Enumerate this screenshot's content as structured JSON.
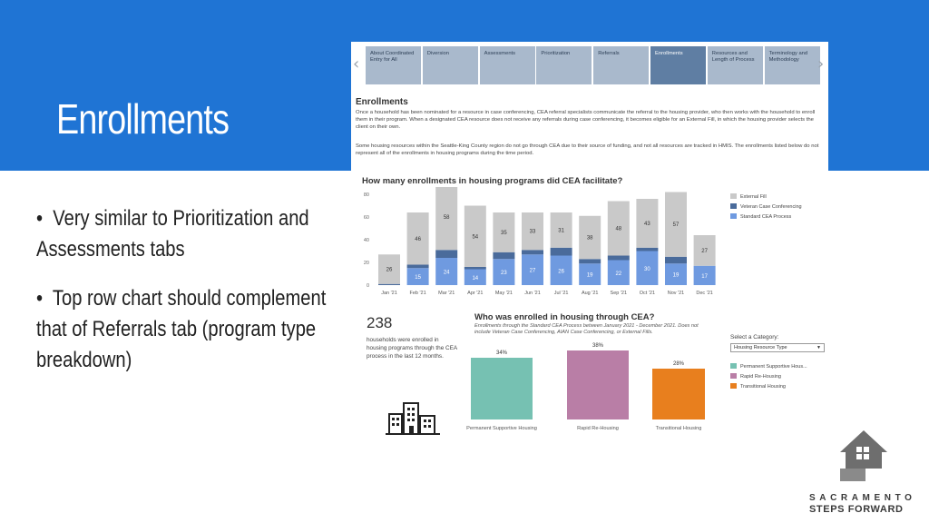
{
  "slide": {
    "title": "Enrollments",
    "bullets": [
      "Very similar to Prioritization and Assessments tabs",
      "Top row chart should complement that of Referrals tab (program type breakdown)"
    ],
    "banner_color": "#1f74d4"
  },
  "dashboard": {
    "tabs": [
      {
        "label": "About Coordinated Entry for All",
        "active": false
      },
      {
        "label": "Diversion",
        "active": false
      },
      {
        "label": "Assessments",
        "active": false
      },
      {
        "label": "Prioritization",
        "active": false
      },
      {
        "label": "Referrals",
        "active": false
      },
      {
        "label": "Enrollments",
        "active": true
      },
      {
        "label": "Resources and Length of Process",
        "active": false
      },
      {
        "label": "Terminology and Methodology",
        "active": false
      }
    ],
    "heading": "Enrollments",
    "description_1": "Once a household has been nominated for a resource in case conferencing, CEA referral specialists communicate the referral to the housing provider, who then works with the household to enroll them in their program. When a designated CEA resource does not receive any referrals during case conferencing, it becomes eligible for an External Fill, in which the housing provider selects the client on their own.",
    "description_2": "Some housing resources within the Seattle-King County region do not go through CEA due to their source of funding, and not all resources are tracked in HMIS. The enrollments listed below do not represent all of the enrollments in housing programs during the time period.",
    "kpi_value": "238",
    "kpi_text": "households were enrolled in housing programs through the CEA process in the last 12 months.",
    "select_label": "Select a Category:",
    "select_value": "Housing Resource Type"
  },
  "chart_data": [
    {
      "type": "bar",
      "stacked": true,
      "title": "How many enrollments in housing programs did CEA facilitate?",
      "categories": [
        "Jan '21",
        "Feb '21",
        "Mar '21",
        "Apr '21",
        "May '21",
        "Jun '21",
        "Jul '21",
        "Aug '21",
        "Sep '21",
        "Oct '21",
        "Nov '21",
        "Dec '21"
      ],
      "series": [
        {
          "name": "Standard CEA Process",
          "color": "#6f9ae0",
          "values": [
            null,
            15,
            24,
            14,
            23,
            27,
            26,
            19,
            22,
            30,
            19,
            17
          ]
        },
        {
          "name": "Veteran Case Conferencing",
          "color": "#4a6b9b",
          "values": [
            1,
            3,
            7,
            2,
            6,
            4,
            7,
            4,
            4,
            3,
            6,
            null
          ]
        },
        {
          "name": "External Fill",
          "color": "#c9c9c9",
          "values": [
            26,
            46,
            58,
            54,
            35,
            33,
            31,
            38,
            48,
            43,
            57,
            27
          ]
        }
      ],
      "ylim": [
        0,
        80
      ],
      "yticks": [
        0,
        20,
        40,
        60,
        80
      ],
      "legend": "top-right"
    },
    {
      "type": "bar",
      "title": "Who was enrolled in housing through CEA?",
      "subtitle": "Enrollments through the Standard CEA Process between January 2021 - December 2021. Does not include Veteran Case Conferencing, AIAN Case Conferencing, or External Fills.",
      "categories": [
        "Permanent Supportive Housing",
        "Rapid Re-Housing",
        "Transitional Housing"
      ],
      "values": [
        34,
        38,
        28
      ],
      "value_labels": [
        "34%",
        "38%",
        "28%"
      ],
      "colors": [
        "#76c1b2",
        "#b97ea6",
        "#e87f1e"
      ],
      "legend_labels": [
        "Permanent Supportive Hous...",
        "Rapid Re-Housing",
        "Transitional Housing"
      ],
      "legend": "right"
    }
  ],
  "logo": {
    "line1": "SACRAMENTO",
    "line2": "STEPS FORWARD"
  }
}
